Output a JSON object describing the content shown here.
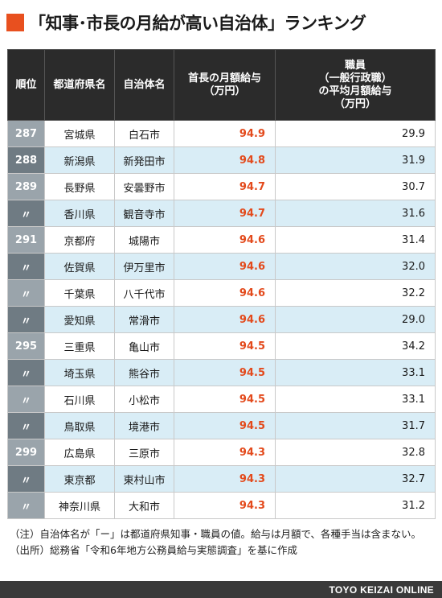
{
  "title": "「知事･市長の月給が高い自治体」ランキング",
  "headers": {
    "rank": "順位",
    "prefecture": "都道府県名",
    "municipality": "自治体名",
    "mayor_salary": "首長の月額給与\n（万円）",
    "staff_salary": "職員\n（一般行政職）\nの平均月額給与\n（万円）"
  },
  "rows": [
    {
      "rank": "287",
      "prefecture": "宮城県",
      "municipality": "白石市",
      "mayor": "94.9",
      "staff": "29.9"
    },
    {
      "rank": "288",
      "prefecture": "新潟県",
      "municipality": "新発田市",
      "mayor": "94.8",
      "staff": "31.9"
    },
    {
      "rank": "289",
      "prefecture": "長野県",
      "municipality": "安曇野市",
      "mayor": "94.7",
      "staff": "30.7"
    },
    {
      "rank": "〃",
      "prefecture": "香川県",
      "municipality": "観音寺市",
      "mayor": "94.7",
      "staff": "31.6"
    },
    {
      "rank": "291",
      "prefecture": "京都府",
      "municipality": "城陽市",
      "mayor": "94.6",
      "staff": "31.4"
    },
    {
      "rank": "〃",
      "prefecture": "佐賀県",
      "municipality": "伊万里市",
      "mayor": "94.6",
      "staff": "32.0"
    },
    {
      "rank": "〃",
      "prefecture": "千葉県",
      "municipality": "八千代市",
      "mayor": "94.6",
      "staff": "32.2"
    },
    {
      "rank": "〃",
      "prefecture": "愛知県",
      "municipality": "常滑市",
      "mayor": "94.6",
      "staff": "29.0"
    },
    {
      "rank": "295",
      "prefecture": "三重県",
      "municipality": "亀山市",
      "mayor": "94.5",
      "staff": "34.2"
    },
    {
      "rank": "〃",
      "prefecture": "埼玉県",
      "municipality": "熊谷市",
      "mayor": "94.5",
      "staff": "33.1"
    },
    {
      "rank": "〃",
      "prefecture": "石川県",
      "municipality": "小松市",
      "mayor": "94.5",
      "staff": "33.1"
    },
    {
      "rank": "〃",
      "prefecture": "鳥取県",
      "municipality": "境港市",
      "mayor": "94.5",
      "staff": "31.7"
    },
    {
      "rank": "299",
      "prefecture": "広島県",
      "municipality": "三原市",
      "mayor": "94.3",
      "staff": "32.8"
    },
    {
      "rank": "〃",
      "prefecture": "東京都",
      "municipality": "東村山市",
      "mayor": "94.3",
      "staff": "32.7"
    },
    {
      "rank": "〃",
      "prefecture": "神奈川県",
      "municipality": "大和市",
      "mayor": "94.3",
      "staff": "31.2"
    }
  ],
  "notes": {
    "note1": "（注）自治体名が「ー」は都道府県知事・職員の値。給与は月額で、各種手当は含まない。",
    "note2": "（出所）総務省「令和6年地方公務員給与実態調査」を基に作成"
  },
  "footer": "TOYO KEIZAI ONLINE",
  "colors": {
    "accent": "#e8501f",
    "mayor_value": "#e34a1c",
    "header_bg": "#2b2b2b",
    "row_alt": "#d9edf6"
  }
}
